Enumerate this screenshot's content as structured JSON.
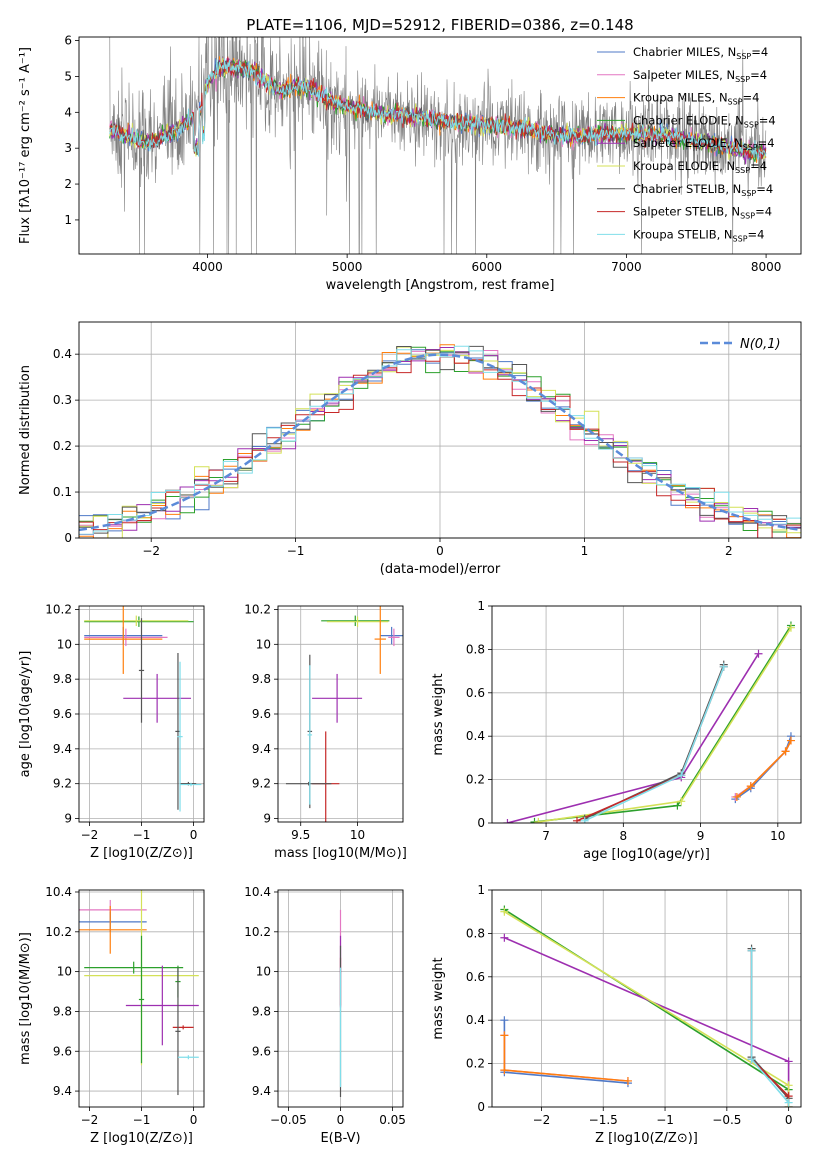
{
  "figure_title": "PLATE=1106, MJD=52912, FIBERID=0386, z=0.148",
  "series_styles": [
    {
      "name": "Chabrier MILES",
      "color": "#4f79c7"
    },
    {
      "name": "Salpeter MILES",
      "color": "#e377c2"
    },
    {
      "name": "Kroupa MILES",
      "color": "#ff7f0e"
    },
    {
      "name": "Chabrier ELODIE",
      "color": "#2ca02c"
    },
    {
      "name": "Salpeter ELODIE",
      "color": "#9d2fb0"
    },
    {
      "name": "Kroupa ELODIE",
      "color": "#d4e157"
    },
    {
      "name": "Chabrier STELIB",
      "color": "#555555"
    },
    {
      "name": "Salpeter STELIB",
      "color": "#c62828"
    },
    {
      "name": "Kroupa STELIB",
      "color": "#80deea"
    }
  ],
  "chart_data": [
    {
      "id": "spectrum",
      "type": "line",
      "title": "PLATE=1106, MJD=52912, FIBERID=0386, z=0.148",
      "xlabel": "wavelength [Angstrom, rest frame]",
      "ylabel": "Flux [fλ10⁻¹⁷ erg cm⁻² s⁻¹ A⁻¹]",
      "xlim": [
        3080,
        8250
      ],
      "ylim": [
        0.05,
        6.1
      ],
      "xticks": [
        4000,
        5000,
        6000,
        7000,
        8000
      ],
      "yticks": [
        1,
        2,
        3,
        4,
        5,
        6
      ],
      "legend_position": "top-right",
      "legend": [
        "Chabrier MILES, N_SSP=4",
        "Salpeter MILES, N_SSP=4",
        "Kroupa MILES, N_SSP=4",
        "Chabrier ELODIE, N_SSP=4",
        "Salpeter ELODIE, N_SSP=4",
        "Kroupa ELODIE, N_SSP=4",
        "Chabrier STELIB, N_SSP=4",
        "Salpeter STELIB, N_SSP=4",
        "Kroupa STELIB, N_SSP=4"
      ],
      "model_continuum": {
        "x": [
          3300,
          3500,
          3600,
          3800,
          3950,
          4000,
          4100,
          4300,
          4500,
          4700,
          4900,
          5100,
          5300,
          5500,
          5700,
          5900,
          6100,
          6300,
          6500,
          6700,
          6900,
          7100,
          7300,
          7500,
          7700,
          7900,
          8000
        ],
        "y": [
          3.55,
          3.25,
          3.15,
          3.55,
          4.1,
          4.8,
          5.3,
          5.2,
          4.6,
          4.75,
          4.3,
          4.05,
          3.95,
          3.9,
          3.75,
          3.7,
          3.6,
          3.55,
          3.35,
          3.35,
          3.4,
          3.4,
          3.35,
          3.2,
          3.05,
          2.9,
          2.9
        ]
      },
      "data_noise_level": 0.9
    },
    {
      "id": "residual-histogram",
      "type": "histogram",
      "xlabel": "(data-model)/error",
      "ylabel": "Normed distribution",
      "xlim": [
        -2.5,
        2.5
      ],
      "ylim": [
        0,
        0.47
      ],
      "xticks": [
        -2,
        -1,
        0,
        1,
        2
      ],
      "yticks": [
        0.0,
        0.1,
        0.2,
        0.3,
        0.4
      ],
      "grid": true,
      "bin_width": 0.1,
      "legend_position": "top-right",
      "legend": [
        "N(0,1)"
      ],
      "reference_curve": "gaussian mean 0 sigma 1"
    },
    {
      "id": "age-vs-Z",
      "type": "errorbar",
      "xlabel": "Z [log10(Z/Z⊙)]",
      "ylabel": "age [log10(age/yr)]",
      "xlim": [
        -2.2,
        0.2
      ],
      "ylim": [
        8.98,
        10.22
      ],
      "xticks": [
        -2,
        -1,
        0
      ],
      "yticks": [
        9.0,
        9.2,
        9.4,
        9.6,
        9.8,
        10.0,
        10.2
      ],
      "grid": true,
      "points": [
        {
          "x": -1.05,
          "y": 10.13,
          "xerr": 1.05,
          "yerr": 0.03,
          "series": "Chabrier ELODIE"
        },
        {
          "x": -1.1,
          "y": 10.135,
          "xerr": 1.0,
          "yerr": 0.03,
          "series": "Kroupa ELODIE"
        },
        {
          "x": -1.35,
          "y": 10.05,
          "xerr": 0.75,
          "yerr": 0.05,
          "series": "Chabrier MILES"
        },
        {
          "x": -1.3,
          "y": 10.04,
          "xerr": 0.8,
          "yerr": 0.05,
          "series": "Salpeter MILES"
        },
        {
          "x": -1.35,
          "y": 10.03,
          "xerr": 0.75,
          "yerr": 0.2,
          "series": "Kroupa MILES"
        },
        {
          "x": -0.7,
          "y": 9.69,
          "xerr": 0.65,
          "yerr": 0.14,
          "series": "Salpeter ELODIE"
        },
        {
          "x": -1.0,
          "y": 9.85,
          "xerr": 0.05,
          "yerr": 0.3,
          "series": "Chabrier STELIB"
        },
        {
          "x": -0.3,
          "y": 9.5,
          "xerr": 0.05,
          "yerr": 0.45,
          "series": "Chabrier STELIB"
        },
        {
          "x": -0.26,
          "y": 9.47,
          "xerr": 0.05,
          "yerr": 0.43,
          "series": "Kroupa STELIB"
        },
        {
          "x": -0.1,
          "y": 9.2,
          "xerr": 0.15,
          "yerr": 0.01,
          "series": "Chabrier STELIB"
        },
        {
          "x": -0.05,
          "y": 9.195,
          "xerr": 0.2,
          "yerr": 0.01,
          "series": "Kroupa STELIB"
        }
      ]
    },
    {
      "id": "age-vs-mass",
      "type": "errorbar",
      "xlabel": "mass [log10(M/M⊙)]",
      "ylabel": "",
      "xlim": [
        9.3,
        10.4
      ],
      "ylim": [
        8.98,
        10.22
      ],
      "xticks": [
        9.5,
        10.0
      ],
      "yticks": [
        9.0,
        9.2,
        9.4,
        9.6,
        9.8,
        10.0,
        10.2
      ],
      "grid": true,
      "points": [
        {
          "x": 9.98,
          "y": 10.135,
          "xerr": 0.3,
          "yerr": 0.03,
          "series": "Chabrier ELODIE"
        },
        {
          "x": 10.0,
          "y": 10.13,
          "xerr": 0.27,
          "yerr": 0.03,
          "series": "Kroupa ELODIE"
        },
        {
          "x": 10.3,
          "y": 10.05,
          "xerr": 0.1,
          "yerr": 0.05,
          "series": "Chabrier MILES"
        },
        {
          "x": 10.32,
          "y": 10.04,
          "xerr": 0.05,
          "yerr": 0.05,
          "series": "Salpeter MILES"
        },
        {
          "x": 10.2,
          "y": 10.03,
          "xerr": 0.05,
          "yerr": 0.2,
          "series": "Kroupa MILES"
        },
        {
          "x": 9.82,
          "y": 9.69,
          "xerr": 0.22,
          "yerr": 0.14,
          "series": "Salpeter ELODIE"
        },
        {
          "x": 9.72,
          "y": 9.2,
          "xerr": 0.12,
          "yerr": 0.3,
          "series": "Salpeter STELIB"
        },
        {
          "x": 9.57,
          "y": 9.2,
          "xerr": 0.2,
          "yerr": 0.01,
          "series": "Chabrier STELIB"
        },
        {
          "x": 9.58,
          "y": 9.5,
          "xerr": 0.02,
          "yerr": 0.44,
          "series": "Chabrier STELIB"
        },
        {
          "x": 9.58,
          "y": 9.48,
          "xerr": 0.02,
          "yerr": 0.4,
          "series": "Kroupa STELIB"
        }
      ]
    },
    {
      "id": "mass-weight-vs-age",
      "type": "line",
      "xlabel": "age [log10(age/yr)]",
      "ylabel": "mass weight",
      "xlim": [
        6.3,
        10.3
      ],
      "ylim": [
        0,
        1
      ],
      "xticks": [
        7,
        8,
        9,
        10
      ],
      "yticks": [
        0.0,
        0.2,
        0.4,
        0.6,
        0.8,
        1.0
      ],
      "grid": true,
      "series": [
        {
          "name": "Chabrier MILES",
          "x": [
            9.45,
            9.65,
            10.1,
            10.17
          ],
          "y": [
            0.11,
            0.16,
            0.33,
            0.4
          ]
        },
        {
          "name": "Salpeter MILES",
          "x": [
            9.45,
            9.65,
            10.1,
            10.17
          ],
          "y": [
            0.12,
            0.17,
            0.33,
            0.38
          ]
        },
        {
          "name": "Kroupa MILES",
          "x": [
            9.47,
            9.65,
            10.1,
            10.17
          ],
          "y": [
            0.12,
            0.17,
            0.33,
            0.38
          ]
        },
        {
          "name": "Chabrier ELODIE",
          "x": [
            6.85,
            8.7,
            10.17
          ],
          "y": [
            0.005,
            0.08,
            0.91
          ]
        },
        {
          "name": "Salpeter ELODIE",
          "x": [
            6.5,
            8.75,
            9.75
          ],
          "y": [
            0.0,
            0.21,
            0.78
          ]
        },
        {
          "name": "Kroupa ELODIE",
          "x": [
            6.9,
            8.75,
            10.17
          ],
          "y": [
            0.005,
            0.1,
            0.9
          ]
        },
        {
          "name": "Chabrier STELIB",
          "x": [
            7.5,
            8.75,
            9.3
          ],
          "y": [
            0.02,
            0.23,
            0.73
          ]
        },
        {
          "name": "Salpeter STELIB",
          "x": [
            7.4,
            8.75,
            9.3
          ],
          "y": [
            0.01,
            0.22,
            0.72
          ]
        },
        {
          "name": "Kroupa STELIB",
          "x": [
            7.5,
            8.75,
            9.3
          ],
          "y": [
            0.01,
            0.22,
            0.72
          ]
        }
      ]
    },
    {
      "id": "mass-vs-Z",
      "type": "errorbar",
      "xlabel": "Z [log10(Z/Z⊙)]",
      "ylabel": "mass [log10(M/M⊙)]",
      "xlim": [
        -2.2,
        0.2
      ],
      "ylim": [
        9.32,
        10.41
      ],
      "xticks": [
        -2,
        -1,
        0
      ],
      "yticks": [
        9.4,
        9.6,
        9.8,
        10.0,
        10.2,
        10.4
      ],
      "grid": true,
      "points": [
        {
          "x": -1.6,
          "y": 10.31,
          "xerr": 0.7,
          "yerr": 0.05,
          "series": "Salpeter MILES"
        },
        {
          "x": -1.6,
          "y": 10.25,
          "xerr": 0.7,
          "yerr": 0.05,
          "series": "Chabrier MILES"
        },
        {
          "x": -1.6,
          "y": 10.21,
          "xerr": 0.7,
          "yerr": 0.12,
          "series": "Kroupa MILES"
        },
        {
          "x": -1.15,
          "y": 10.02,
          "xerr": 0.95,
          "yerr": 0.03,
          "series": "Chabrier ELODIE"
        },
        {
          "x": -1.0,
          "y": 9.98,
          "xerr": 1.1,
          "yerr": 0.45,
          "series": "Kroupa ELODIE"
        },
        {
          "x": -0.3,
          "y": 9.95,
          "xerr": 0.05,
          "yerr": 0.08,
          "series": "Chabrier ELODIE"
        },
        {
          "x": -0.6,
          "y": 9.83,
          "xerr": 0.7,
          "yerr": 0.2,
          "series": "Salpeter ELODIE"
        },
        {
          "x": -0.2,
          "y": 9.72,
          "xerr": 0.2,
          "yerr": 0.01,
          "series": "Salpeter STELIB"
        },
        {
          "x": -0.3,
          "y": 9.7,
          "xerr": 0.05,
          "yerr": 0.32,
          "series": "Chabrier STELIB"
        },
        {
          "x": -0.1,
          "y": 9.57,
          "xerr": 0.2,
          "yerr": 0.01,
          "series": "Kroupa STELIB"
        },
        {
          "x": -1.0,
          "y": 9.86,
          "xerr": 0.05,
          "yerr": 0.32,
          "series": "Chabrier ELODIE"
        }
      ]
    },
    {
      "id": "mass-vs-ebv",
      "type": "errorbar",
      "xlabel": "E(B-V)",
      "ylabel": "",
      "xlim": [
        -0.06,
        0.06
      ],
      "ylim": [
        9.32,
        10.41
      ],
      "xticks": [
        -0.05,
        0.0,
        0.05
      ],
      "yticks": [
        9.4,
        9.6,
        9.8,
        10.0,
        10.2,
        10.4
      ],
      "grid": true,
      "points": [
        {
          "x": 0.0,
          "y": 10.15,
          "xerr": 0,
          "yerr": 0.16,
          "series": "Salpeter MILES"
        },
        {
          "x": 0.0,
          "y": 10.0,
          "xerr": 0,
          "yerr": 0.18,
          "series": "Salpeter ELODIE"
        },
        {
          "x": 0.0,
          "y": 9.95,
          "xerr": 0,
          "yerr": 0.12,
          "series": "Salpeter STELIB"
        },
        {
          "x": 0.0,
          "y": 9.75,
          "xerr": 0,
          "yerr": 0.38,
          "series": "Chabrier STELIB"
        },
        {
          "x": 0.0,
          "y": 9.72,
          "xerr": 0,
          "yerr": 0.3,
          "series": "Kroupa STELIB"
        }
      ]
    },
    {
      "id": "mass-weight-vs-Z",
      "type": "line",
      "xlabel": "Z [log10(Z/Z⊙)]",
      "ylabel": "mass weight",
      "xlim": [
        -2.4,
        0.1
      ],
      "ylim": [
        0,
        1
      ],
      "xticks": [
        -2.0,
        -1.5,
        -1.0,
        -0.5,
        0.0
      ],
      "yticks": [
        0.0,
        0.2,
        0.4,
        0.6,
        0.8,
        1.0
      ],
      "grid": true,
      "series": [
        {
          "name": "Chabrier MILES",
          "x": [
            -2.3,
            -2.3,
            -1.3
          ],
          "y": [
            0.4,
            0.16,
            0.11
          ]
        },
        {
          "name": "Salpeter MILES",
          "x": [
            -2.3,
            -2.3,
            -1.3
          ],
          "y": [
            0.33,
            0.17,
            0.12
          ]
        },
        {
          "name": "Kroupa MILES",
          "x": [
            -2.3,
            -2.3,
            -1.3
          ],
          "y": [
            0.33,
            0.17,
            0.12
          ]
        },
        {
          "name": "Chabrier ELODIE",
          "x": [
            -2.3,
            0.0,
            0.0
          ],
          "y": [
            0.91,
            0.08,
            0.0
          ]
        },
        {
          "name": "Salpeter ELODIE",
          "x": [
            -2.3,
            0.0,
            0.0
          ],
          "y": [
            0.78,
            0.21,
            0.0
          ]
        },
        {
          "name": "Kroupa ELODIE",
          "x": [
            -2.3,
            0.0,
            0.0
          ],
          "y": [
            0.9,
            0.1,
            0.0
          ]
        },
        {
          "name": "Chabrier STELIB",
          "x": [
            -0.3,
            -0.3,
            0.0
          ],
          "y": [
            0.73,
            0.23,
            0.04
          ]
        },
        {
          "name": "Salpeter STELIB",
          "x": [
            -0.3,
            -0.3,
            0.0
          ],
          "y": [
            0.72,
            0.22,
            0.05
          ]
        },
        {
          "name": "Kroupa STELIB",
          "x": [
            -0.3,
            -0.3,
            0.0
          ],
          "y": [
            0.72,
            0.22,
            0.02
          ]
        }
      ]
    }
  ]
}
